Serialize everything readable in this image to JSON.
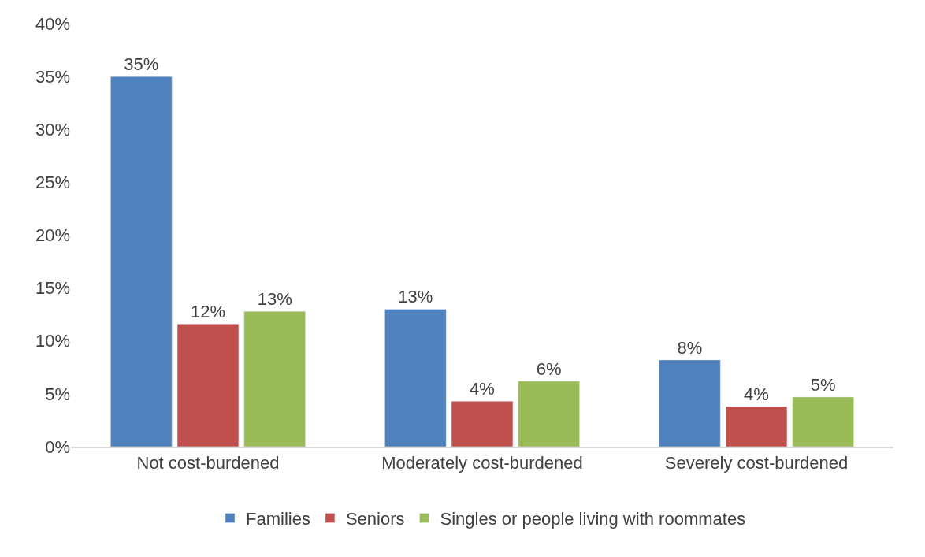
{
  "chart_data": {
    "type": "bar",
    "categories": [
      "Not cost-burdened",
      "Moderately cost-burdened",
      "Severely cost-burdened"
    ],
    "series": [
      {
        "name": "Families",
        "color": "#4f81bd",
        "values": [
          35.0,
          13.0,
          8.2
        ],
        "value_labels": [
          "35%",
          "13%",
          "8%"
        ]
      },
      {
        "name": "Seniors",
        "color": "#c0504d",
        "values": [
          11.6,
          4.3,
          3.8
        ],
        "value_labels": [
          "12%",
          "4%",
          "4%"
        ]
      },
      {
        "name": "Singles or people living with roommates",
        "color": "#9bbb59",
        "values": [
          12.8,
          6.2,
          4.7
        ],
        "value_labels": [
          "13%",
          "6%",
          "5%"
        ]
      }
    ],
    "ylim": [
      0,
      40
    ],
    "yticks": [
      {
        "value": 0,
        "label": "0%"
      },
      {
        "value": 5,
        "label": "5%"
      },
      {
        "value": 10,
        "label": "10%"
      },
      {
        "value": 15,
        "label": "15%"
      },
      {
        "value": 20,
        "label": "20%"
      },
      {
        "value": 25,
        "label": "25%"
      },
      {
        "value": 30,
        "label": "30%"
      },
      {
        "value": 35,
        "label": "35%"
      },
      {
        "value": 40,
        "label": "40%"
      }
    ],
    "legend": "bottom"
  }
}
